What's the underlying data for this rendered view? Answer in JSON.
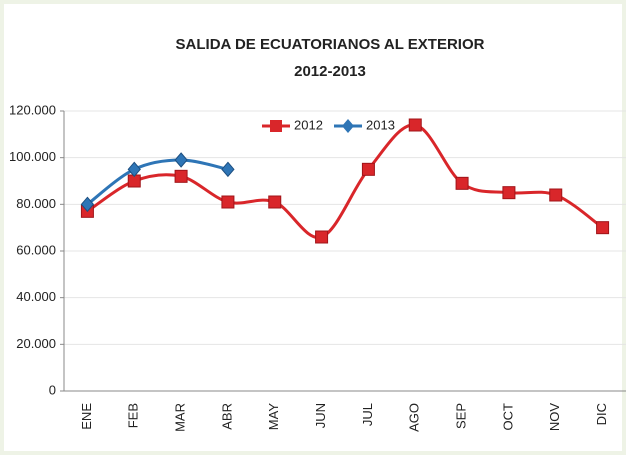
{
  "chart_data": {
    "type": "line",
    "title": "SALIDA DE ECUATORIANOS AL EXTERIOR",
    "subtitle": "2012-2013",
    "categories": [
      "ENE",
      "FEB",
      "MAR",
      "ABR",
      "MAY",
      "JUN",
      "JUL",
      "AGO",
      "SEP",
      "OCT",
      "NOV",
      "DIC"
    ],
    "series": [
      {
        "name": "2012",
        "color": "#d9262a",
        "values": [
          77000,
          90000,
          92000,
          81000,
          81000,
          66000,
          95000,
          114000,
          89000,
          85000,
          84000,
          70000
        ]
      },
      {
        "name": "2013",
        "color": "#2e75b6",
        "values": [
          80000,
          95000,
          99000,
          95000,
          null,
          null,
          null,
          null,
          null,
          null,
          null,
          null
        ]
      }
    ],
    "ylim": [
      0,
      120000
    ],
    "yticks": [
      0,
      {
        "value": 20000,
        "label": "20.000"
      },
      {
        "value": 40000,
        "label": "40.000"
      },
      {
        "value": 60000,
        "label": "60.000"
      },
      {
        "value": 80000,
        "label": "80.000"
      },
      {
        "value": 100000,
        "label": "100.000"
      },
      {
        "value": 120000,
        "label": "120.000"
      }
    ],
    "grid": true,
    "legend": "top"
  }
}
